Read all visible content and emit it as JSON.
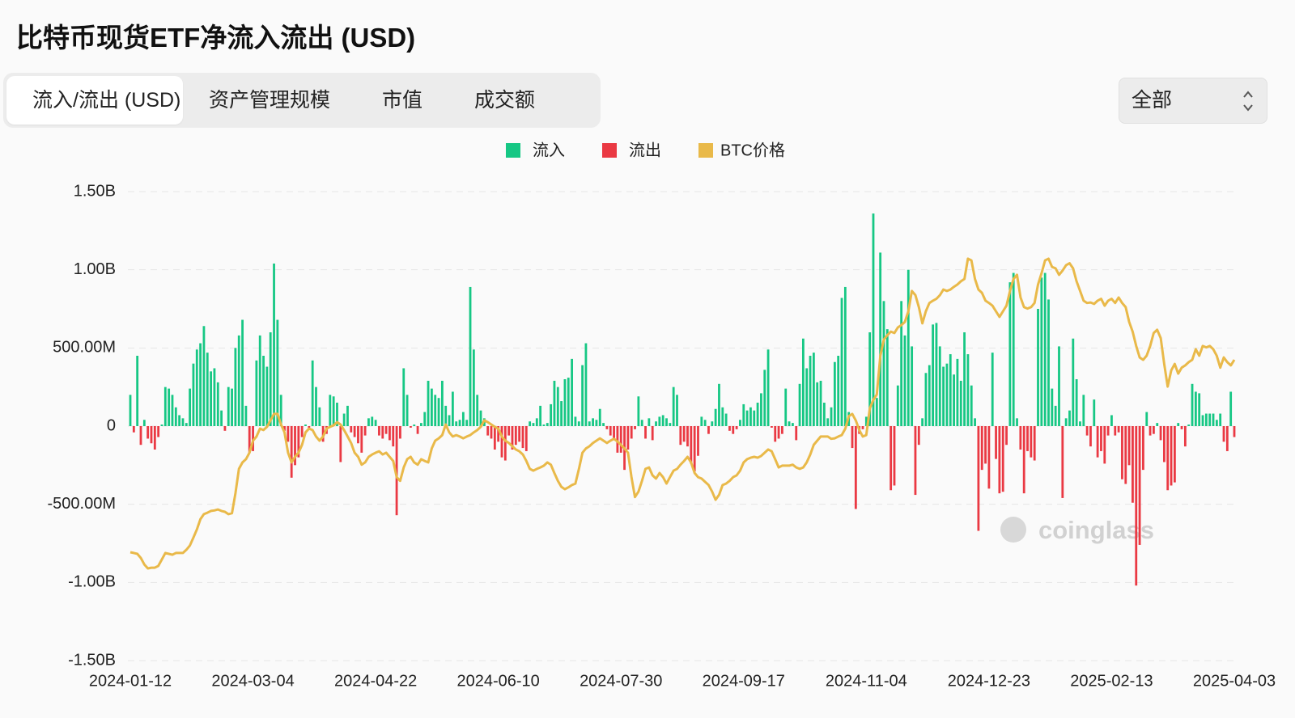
{
  "header": {
    "title": "比特币现货ETF净流入流出 (USD)"
  },
  "tabs": [
    "流入/流出 (USD)",
    "资产管理规模",
    "市值",
    "成交额"
  ],
  "select": {
    "value": "全部"
  },
  "chart_data": {
    "type": "bar",
    "categories": [
      "2024-01-12",
      null,
      null,
      null,
      null,
      null,
      null,
      null,
      null,
      null,
      null,
      null,
      null,
      null,
      null,
      null,
      null,
      null,
      null,
      null,
      null,
      null,
      null,
      null,
      null,
      null,
      null,
      null,
      null,
      null,
      null,
      null,
      null,
      null,
      null,
      "2024-03-04",
      null,
      null,
      null,
      null,
      null,
      null,
      null,
      null,
      null,
      null,
      null,
      null,
      null,
      null,
      null,
      null,
      null,
      null,
      null,
      null,
      null,
      null,
      null,
      null,
      null,
      null,
      null,
      null,
      null,
      null,
      null,
      null,
      null,
      null,
      "2024-04-22",
      null,
      null,
      null,
      null,
      null,
      null,
      null,
      null,
      null,
      null,
      null,
      null,
      null,
      null,
      null,
      null,
      null,
      null,
      null,
      null,
      null,
      null,
      null,
      null,
      null,
      null,
      null,
      null,
      null,
      null,
      null,
      null,
      null,
      null,
      "2024-06-10",
      null,
      null,
      null,
      null,
      null,
      null,
      null,
      null,
      null,
      null,
      null,
      null,
      null,
      null,
      null,
      null,
      null,
      null,
      null,
      null,
      null,
      null,
      null,
      null,
      null,
      null,
      null,
      null,
      null,
      null,
      null,
      null,
      null,
      null,
      "2024-07-30",
      null,
      null,
      null,
      null,
      null,
      null,
      null,
      null,
      null,
      null,
      null,
      null,
      null,
      null,
      null,
      null,
      null,
      null,
      null,
      null,
      null,
      null,
      null,
      null,
      null,
      null,
      null,
      null,
      null,
      null,
      null,
      null,
      null,
      null,
      "2024-09-17",
      null,
      null,
      null,
      null,
      null,
      null,
      null,
      null,
      null,
      null,
      null,
      null,
      null,
      null,
      null,
      null,
      null,
      null,
      null,
      null,
      null,
      null,
      null,
      null,
      null,
      null,
      null,
      null,
      null,
      null,
      null,
      null,
      null,
      null,
      "2024-11-04",
      null,
      null,
      null,
      null,
      null,
      null,
      null,
      null,
      null,
      null,
      null,
      null,
      null,
      null,
      null,
      null,
      null,
      null,
      null,
      null,
      null,
      null,
      null,
      null,
      null,
      null,
      null,
      null,
      null,
      null,
      null,
      null,
      null,
      null,
      "2024-12-23",
      null,
      null,
      null,
      null,
      null,
      null,
      null,
      null,
      null,
      null,
      null,
      null,
      null,
      null,
      null,
      null,
      null,
      null,
      null,
      null,
      null,
      null,
      null,
      null,
      null,
      null,
      null,
      null,
      null,
      null,
      null,
      null,
      null,
      null,
      "2025-02-13",
      null,
      null,
      null,
      null,
      null,
      null,
      null,
      null,
      null,
      null,
      null,
      null,
      null,
      null,
      null,
      null,
      null,
      null,
      null,
      null,
      null,
      null,
      null,
      null,
      null,
      null,
      null,
      null,
      null,
      null,
      null,
      null,
      null,
      null,
      "2025-04-03"
    ],
    "values": [
      200,
      -40,
      450,
      -120,
      40,
      -80,
      -110,
      -150,
      -70,
      10,
      250,
      240,
      200,
      120,
      70,
      50,
      20,
      240,
      400,
      490,
      530,
      640,
      470,
      350,
      370,
      280,
      100,
      -30,
      250,
      240,
      500,
      580,
      680,
      130,
      -170,
      -160,
      420,
      580,
      450,
      380,
      600,
      1040,
      680,
      200,
      -30,
      -100,
      -330,
      -250,
      -200,
      -70,
      10,
      -20,
      420,
      250,
      120,
      -100,
      -50,
      200,
      190,
      150,
      -230,
      80,
      130,
      -40,
      -70,
      -110,
      -170,
      -60,
      50,
      60,
      40,
      -60,
      -80,
      -50,
      -90,
      -130,
      -570,
      -80,
      370,
      200,
      -10,
      10,
      -50,
      20,
      90,
      290,
      240,
      200,
      180,
      290,
      130,
      70,
      220,
      30,
      40,
      90,
      40,
      890,
      490,
      200,
      100,
      50,
      -60,
      -80,
      -150,
      -100,
      -200,
      -220,
      -60,
      -150,
      -120,
      -100,
      -140,
      -160,
      30,
      20,
      50,
      130,
      10,
      20,
      140,
      290,
      250,
      160,
      300,
      310,
      430,
      60,
      30,
      390,
      530,
      30,
      50,
      40,
      110,
      20,
      -20,
      -60,
      -80,
      -170,
      -170,
      -280,
      -150,
      -80,
      -20,
      190,
      40,
      -80,
      50,
      -90,
      30,
      60,
      70,
      50,
      20,
      250,
      200,
      -120,
      -100,
      -130,
      -240,
      -290,
      -190,
      60,
      40,
      -50,
      30,
      110,
      270,
      120,
      80,
      -30,
      -50,
      -20,
      40,
      140,
      100,
      120,
      100,
      150,
      210,
      360,
      490,
      -10,
      -100,
      -80,
      -50,
      240,
      30,
      20,
      -90,
      270,
      560,
      370,
      450,
      470,
      280,
      290,
      150,
      50,
      120,
      410,
      450,
      820,
      890,
      90,
      -140,
      -530,
      -50,
      -20,
      60,
      600,
      1360,
      180,
      1110,
      800,
      620,
      -410,
      -380,
      260,
      800,
      580,
      1000,
      510,
      -440,
      -120,
      50,
      340,
      390,
      650,
      660,
      510,
      380,
      400,
      460,
      330,
      430,
      290,
      600,
      460,
      260,
      50,
      -670,
      -280,
      -240,
      -400,
      470,
      -210,
      -430,
      -420,
      -120,
      920,
      980,
      50,
      -150,
      -430,
      -160,
      -200,
      -220,
      750,
      950,
      980,
      810,
      240,
      130,
      510,
      -460,
      50,
      100,
      560,
      300,
      30,
      200,
      -60,
      -130,
      170,
      -200,
      -160,
      -240,
      -60,
      70,
      -60,
      -40,
      -340,
      -370,
      -250,
      -490,
      -1020,
      -760,
      -280,
      90,
      -60,
      -50,
      20,
      -90,
      -230,
      -410,
      -380,
      -360,
      20,
      -20,
      -130,
      10,
      270,
      220,
      210,
      70,
      80,
      80,
      80,
      40,
      80,
      -100,
      -160,
      220,
      -70
    ],
    "series": [
      {
        "name": "流入",
        "color": "#16c784"
      },
      {
        "name": "流出",
        "color": "#ea3943"
      },
      {
        "name": "BTC价格",
        "color": "#e9b949",
        "type": "line",
        "axis": "y2",
        "values": [
          42450,
          42300,
          42100,
          41200,
          39800,
          38950,
          39100,
          39100,
          39500,
          40900,
          42300,
          42100,
          41900,
          42300,
          42300,
          42300,
          43000,
          43900,
          45600,
          47400,
          49600,
          50700,
          51000,
          51400,
          51500,
          51700,
          51400,
          51200,
          50700,
          50900,
          55200,
          60500,
          61900,
          62600,
          64000,
          66600,
          67500,
          69200,
          68900,
          69600,
          71000,
          72400,
          72400,
          70100,
          68400,
          64000,
          61900,
          63100,
          64000,
          65700,
          68400,
          69200,
          68900,
          67500,
          66600,
          67500,
          69200,
          69600,
          69900,
          70600,
          70100,
          68900,
          67500,
          66100,
          64000,
          63100,
          61400,
          61900,
          63100,
          63600,
          64000,
          64300,
          63600,
          64000,
          63100,
          62200,
          58700,
          57900,
          60800,
          62600,
          63100,
          61900,
          61400,
          62600,
          62200,
          61900,
          64900,
          66600,
          67100,
          67800,
          70100,
          68400,
          67500,
          67800,
          67500,
          67100,
          67500,
          67800,
          68400,
          68900,
          69600,
          71000,
          70600,
          70100,
          69600,
          69200,
          67500,
          66600,
          66100,
          65400,
          64700,
          64300,
          63600,
          62200,
          60500,
          60100,
          60500,
          60800,
          61200,
          61900,
          61400,
          59600,
          57900,
          56600,
          56100,
          56500,
          57000,
          57300,
          60500,
          64000,
          64900,
          65400,
          66100,
          66600,
          67100,
          66600,
          66100,
          66600,
          67000,
          66400,
          65700,
          64900,
          64000,
          58700,
          54400,
          55600,
          57900,
          60500,
          60800,
          59100,
          58400,
          59600,
          58700,
          57300,
          58700,
          60100,
          60500,
          61400,
          62200,
          63100,
          61900,
          59600,
          58700,
          58400,
          57700,
          57000,
          55600,
          53800,
          54900,
          57000,
          57300,
          57900,
          58700,
          59100,
          60100,
          61900,
          62600,
          62900,
          63100,
          62900,
          63300,
          64000,
          64700,
          64300,
          62600,
          60800,
          61200,
          61200,
          61200,
          61400,
          60800,
          60500,
          60800,
          61900,
          63600,
          65700,
          66600,
          67500,
          67500,
          67500,
          67000,
          67100,
          67500,
          67800,
          69200,
          71900,
          72400,
          71000,
          68900,
          67500,
          67800,
          73600,
          75400,
          76600,
          85000,
          88500,
          89400,
          90200,
          89900,
          91100,
          91600,
          92300,
          94600,
          99000,
          98100,
          95500,
          92000,
          94600,
          96400,
          96900,
          97300,
          98100,
          99300,
          99000,
          99300,
          99900,
          100400,
          101100,
          101600,
          106000,
          105600,
          101600,
          99300,
          98600,
          96900,
          96400,
          95800,
          94600,
          93400,
          94600,
          95800,
          99000,
          101600,
          102500,
          97600,
          95500,
          95200,
          95500,
          96400,
          100400,
          102800,
          105600,
          106000,
          104200,
          103900,
          102500,
          103400,
          104600,
          105000,
          103900,
          101100,
          99000,
          96900,
          96400,
          96500,
          96200,
          96900,
          97300,
          95800,
          96900,
          97300,
          96400,
          97600,
          96400,
          95500,
          92300,
          90200,
          87100,
          84600,
          84100,
          85000,
          87100,
          89900,
          90600,
          88800,
          83200,
          78300,
          81800,
          83200,
          81100,
          82400,
          82900,
          83600,
          84100,
          86400,
          85000,
          87100,
          86800,
          87100,
          86400,
          85000,
          82400,
          84600,
          83600,
          82900,
          84100
        ]
      }
    ],
    "ylim": [
      -1500,
      1500
    ],
    "yticks": [
      {
        "value": 1500,
        "label": "1.50B"
      },
      {
        "value": 1000,
        "label": "1.00B"
      },
      {
        "value": 500,
        "label": "500.00M"
      },
      0,
      {
        "value": -500,
        "label": "-500.00M"
      },
      {
        "value": -1000,
        "label": "-1.00B"
      },
      {
        "value": -1500,
        "label": "-1.50B"
      }
    ],
    "y2lim": [
      19000,
      120500
    ],
    "grid": true,
    "watermark": "coinglass"
  }
}
